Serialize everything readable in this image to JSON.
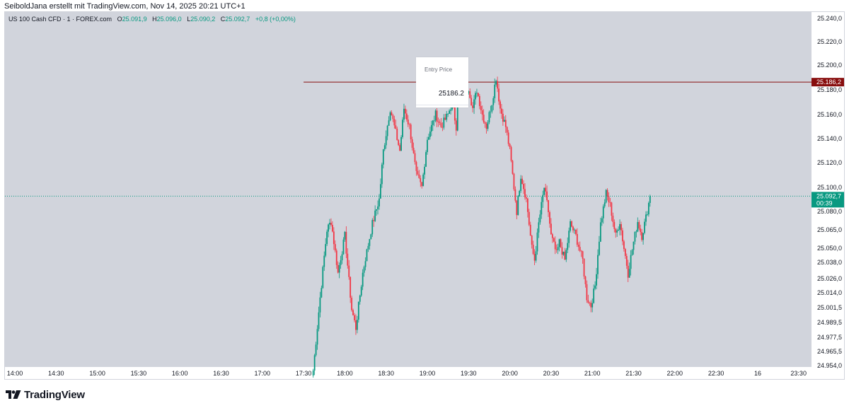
{
  "attribution": "SeiboldJana erstellt mit TradingView.com, Nov 14, 2025 20:21 UTC+1",
  "legend": {
    "symbol": "US 100 Cash CFD · 1 · FOREX.com",
    "o_label": "O",
    "o_value": "25.091,9",
    "h_label": "H",
    "h_value": "25.096,0",
    "l_label": "L",
    "l_value": "25.090,2",
    "c_label": "C",
    "c_value": "25.092,7",
    "change": "+0,8 (+0,00%)"
  },
  "entry_box": {
    "title": "Entry Price",
    "value": "25186.2"
  },
  "footer": {
    "brand": "TradingView"
  },
  "colors": {
    "up": "#089981",
    "down": "#f23645",
    "entry_line": "#880e0e",
    "current_tag": "#089981",
    "background": "#d1d4dc"
  },
  "chart_data": {
    "type": "candlestick",
    "title": "",
    "xlabel": "",
    "ylabel": "",
    "y_ticks": [
      {
        "value": 25240.0,
        "label": "25.240,0"
      },
      {
        "value": 25220.0,
        "label": "25.220,0"
      },
      {
        "value": 25200.0,
        "label": "25.200,0"
      },
      {
        "value": 25180.0,
        "label": "25.180,0"
      },
      {
        "value": 25160.0,
        "label": "25.160,0"
      },
      {
        "value": 25140.0,
        "label": "25.140,0"
      },
      {
        "value": 25120.0,
        "label": "25.120,0"
      },
      {
        "value": 25100.0,
        "label": "25.100,0"
      },
      {
        "value": 25080.0,
        "label": "25.080,0"
      },
      {
        "value": 25065.0,
        "label": "25.065,0"
      },
      {
        "value": 25050.0,
        "label": "25.050,0"
      },
      {
        "value": 25038.0,
        "label": "25.038,0"
      },
      {
        "value": 25026.0,
        "label": "25.026,0"
      },
      {
        "value": 25014.0,
        "label": "25.014,0"
      },
      {
        "value": 25001.5,
        "label": "25.001,5"
      },
      {
        "value": 24989.5,
        "label": "24.989,5"
      },
      {
        "value": 24977.5,
        "label": "24.977,5"
      },
      {
        "value": 24965.5,
        "label": "24.965,5"
      },
      {
        "value": 24954.0,
        "label": "24.954,0"
      }
    ],
    "x_ticks": [
      {
        "time": "14:00",
        "label": "14:00"
      },
      {
        "time": "14:30",
        "label": "14:30"
      },
      {
        "time": "15:00",
        "label": "15:00"
      },
      {
        "time": "15:30",
        "label": "15:30"
      },
      {
        "time": "16:00",
        "label": "16:00"
      },
      {
        "time": "16:30",
        "label": "16:30"
      },
      {
        "time": "17:00",
        "label": "17:00"
      },
      {
        "time": "17:30",
        "label": "17:30"
      },
      {
        "time": "18:00",
        "label": "18:00"
      },
      {
        "time": "18:30",
        "label": "18:30"
      },
      {
        "time": "19:00",
        "label": "19:00"
      },
      {
        "time": "19:30",
        "label": "19:30"
      },
      {
        "time": "20:00",
        "label": "20:00"
      },
      {
        "time": "20:30",
        "label": "20:30"
      },
      {
        "time": "21:00",
        "label": "21:00"
      },
      {
        "time": "21:30",
        "label": "21:30"
      },
      {
        "time": "22:00",
        "label": "22:00"
      },
      {
        "time": "22:30",
        "label": "22:30"
      },
      {
        "time": "24:00",
        "label": "16"
      },
      {
        "time": "23:30",
        "label": "23:30"
      }
    ],
    "entry_line": {
      "value": 25186.2,
      "label": "25.186,2",
      "from_time": "17:30"
    },
    "current_price": {
      "value": 25092.7,
      "label": "25.092,7",
      "countdown": "00:39"
    },
    "waypoints": [
      [
        "17:37",
        24950
      ],
      [
        "17:42",
        25010
      ],
      [
        "17:47",
        25065
      ],
      [
        "17:50",
        25072
      ],
      [
        "17:55",
        25030
      ],
      [
        "18:00",
        25060
      ],
      [
        "18:05",
        25000
      ],
      [
        "18:08",
        24985
      ],
      [
        "18:13",
        25030
      ],
      [
        "18:20",
        25070
      ],
      [
        "18:25",
        25090
      ],
      [
        "18:28",
        25130
      ],
      [
        "18:33",
        25165
      ],
      [
        "18:36",
        25150
      ],
      [
        "18:40",
        25130
      ],
      [
        "18:43",
        25165
      ],
      [
        "18:47",
        25150
      ],
      [
        "18:52",
        25110
      ],
      [
        "18:56",
        25100
      ],
      [
        "19:00",
        25140
      ],
      [
        "19:06",
        25160
      ],
      [
        "19:10",
        25150
      ],
      [
        "19:15",
        25160
      ],
      [
        "19:18",
        25170
      ],
      [
        "19:21",
        25150
      ],
      [
        "19:23",
        25195
      ],
      [
        "19:27",
        25175
      ],
      [
        "19:30",
        25182
      ],
      [
        "19:33",
        25165
      ],
      [
        "19:36",
        25180
      ],
      [
        "19:40",
        25160
      ],
      [
        "19:43",
        25150
      ],
      [
        "19:47",
        25170
      ],
      [
        "19:50",
        25190
      ],
      [
        "19:53",
        25165
      ],
      [
        "19:57",
        25150
      ],
      [
        "20:00",
        25130
      ],
      [
        "20:03",
        25100
      ],
      [
        "20:05",
        25080
      ],
      [
        "20:08",
        25110
      ],
      [
        "20:12",
        25090
      ],
      [
        "20:16",
        25050
      ],
      [
        "20:18",
        25040
      ],
      [
        "20:21",
        25070
      ],
      [
        "20:25",
        25100
      ],
      [
        "20:28",
        25080
      ],
      [
        "20:30",
        25060
      ],
      [
        "20:34",
        25045
      ],
      [
        "20:36",
        25055
      ],
      [
        "20:40",
        25040
      ],
      [
        "20:44",
        25070
      ],
      [
        "20:48",
        25060
      ],
      [
        "20:53",
        25040
      ],
      [
        "20:56",
        25010
      ],
      [
        "20:59",
        25003
      ],
      [
        "21:02",
        25020
      ],
      [
        "21:06",
        25070
      ],
      [
        "21:10",
        25095
      ],
      [
        "21:13",
        25085
      ],
      [
        "21:17",
        25060
      ],
      [
        "21:20",
        25072
      ],
      [
        "21:23",
        25050
      ],
      [
        "21:26",
        25030
      ],
      [
        "21:30",
        25055
      ],
      [
        "21:33",
        25072
      ],
      [
        "21:36",
        25060
      ],
      [
        "21:39",
        25075
      ],
      [
        "21:42",
        25092.7
      ]
    ]
  }
}
